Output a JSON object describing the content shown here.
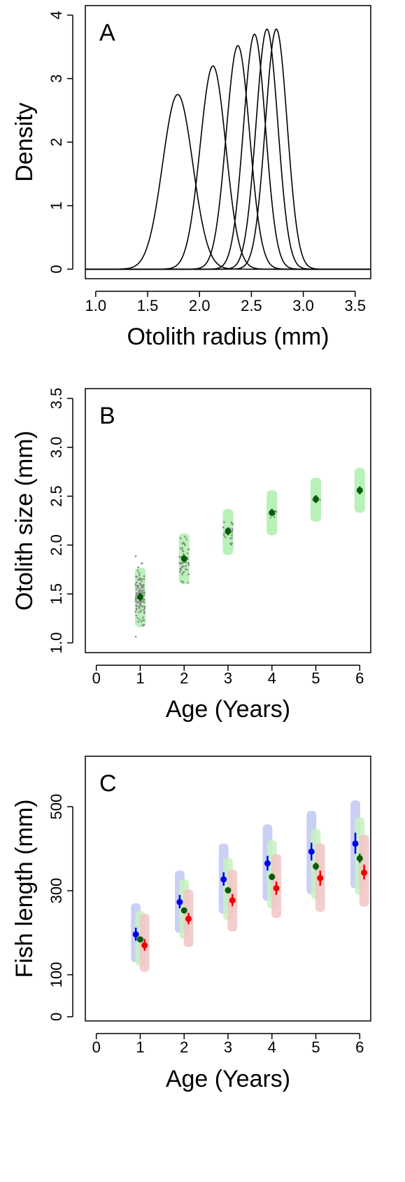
{
  "chart_data": [
    {
      "panel": "A",
      "type": "line",
      "letter": "A",
      "xlabel": "Otolith radius (mm)",
      "ylabel": "Density",
      "xlim": [
        0.9,
        3.65
      ],
      "ylim": [
        -0.15,
        4.15
      ],
      "xticks": [
        1.0,
        1.5,
        2.0,
        2.5,
        3.0,
        3.5
      ],
      "xtick_labels": [
        "1.0",
        "1.5",
        "2.0",
        "2.5",
        "3.0",
        "3.5"
      ],
      "yticks": [
        0,
        1,
        2,
        3,
        4
      ],
      "ytick_labels": [
        "0",
        "1",
        "2",
        "3",
        "4"
      ],
      "grid": false,
      "curve_color": "#000000",
      "series": [
        {
          "mean": 1.79,
          "sd": 0.145,
          "peak": 2.75
        },
        {
          "mean": 2.13,
          "sd": 0.124,
          "peak": 3.2
        },
        {
          "mean": 2.37,
          "sd": 0.113,
          "peak": 3.52
        },
        {
          "mean": 2.53,
          "sd": 0.106,
          "peak": 3.7
        },
        {
          "mean": 2.65,
          "sd": 0.105,
          "peak": 3.78
        },
        {
          "mean": 2.74,
          "sd": 0.105,
          "peak": 3.78
        }
      ]
    },
    {
      "panel": "B",
      "type": "scatter",
      "letter": "B",
      "xlabel": "Age (Years)",
      "ylabel": "Otolith size (mm)",
      "xlim": [
        -0.25,
        6.25
      ],
      "ylim": [
        0.9,
        3.6
      ],
      "xticks": [
        0,
        1,
        2,
        3,
        4,
        5,
        6
      ],
      "xtick_labels": [
        "0",
        "1",
        "2",
        "3",
        "4",
        "5",
        "6"
      ],
      "yticks": [
        1.0,
        1.5,
        2.0,
        2.5,
        3.0,
        3.5
      ],
      "ytick_labels": [
        "1.0",
        "1.5",
        "2.0",
        "2.5",
        "3.0",
        "3.5"
      ],
      "grid": false,
      "colors": {
        "mean": "#0a5c0a",
        "band": "#b8f2b8",
        "raw": "#8a8a8a"
      },
      "series": [
        {
          "name": "",
          "x": [
            1,
            2,
            3,
            4,
            5,
            6
          ],
          "y": [
            1.47,
            1.86,
            2.14,
            2.33,
            2.47,
            2.56
          ],
          "ci_low": [
            1.43,
            1.82,
            2.1,
            2.3,
            2.43,
            2.52
          ],
          "ci_high": [
            1.51,
            1.9,
            2.18,
            2.37,
            2.51,
            2.6
          ],
          "band_low": [
            1.16,
            1.6,
            1.9,
            2.1,
            2.24,
            2.33
          ],
          "band_high": [
            1.77,
            2.12,
            2.37,
            2.56,
            2.69,
            2.79
          ]
        }
      ],
      "raw_points": {
        "ages": [
          1,
          2,
          3,
          4,
          5
        ],
        "counts": [
          120,
          55,
          22,
          6,
          3
        ],
        "mean": [
          1.46,
          1.86,
          2.12,
          2.32,
          2.47
        ],
        "sd": [
          0.15,
          0.12,
          0.08,
          0.05,
          0.02
        ]
      }
    },
    {
      "panel": "C",
      "type": "scatter",
      "letter": "C",
      "xlabel": "Age (Years)",
      "ylabel": "Fish length (mm)",
      "xlim": [
        -0.25,
        6.25
      ],
      "ylim": [
        -10,
        620
      ],
      "xticks": [
        0,
        1,
        2,
        3,
        4,
        5,
        6
      ],
      "xtick_labels": [
        "0",
        "1",
        "2",
        "3",
        "4",
        "5",
        "6"
      ],
      "yticks": [
        0,
        100,
        300,
        500
      ],
      "ytick_labels": [
        "0",
        "100",
        "300",
        "500"
      ],
      "grid": false,
      "series": [
        {
          "name": "",
          "color": "#0000ee",
          "band_color": "#c0c8f2",
          "x_offset": -0.1,
          "x": [
            1,
            2,
            3,
            4,
            5,
            6
          ],
          "y": [
            196,
            273,
            327,
            365,
            393,
            412
          ],
          "ci_low": [
            181,
            258,
            312,
            348,
            372,
            388
          ],
          "ci_high": [
            212,
            290,
            344,
            383,
            414,
            438
          ],
          "band_low": [
            130,
            200,
            245,
            276,
            292,
            306
          ],
          "band_high": [
            270,
            348,
            412,
            458,
            490,
            515
          ]
        },
        {
          "name": "",
          "color": "#0a5c0a",
          "band_color": "#c8f2c0",
          "x_offset": 0,
          "x": [
            1,
            2,
            3,
            4,
            5,
            6
          ],
          "y": [
            184,
            253,
            301,
            333,
            358,
            377
          ],
          "ci_low": [
            178,
            247,
            294,
            325,
            349,
            366
          ],
          "ci_high": [
            190,
            259,
            308,
            341,
            367,
            388
          ],
          "band_low": [
            122,
            186,
            230,
            258,
            280,
            290
          ],
          "band_high": [
            252,
            327,
            378,
            420,
            447,
            475
          ]
        },
        {
          "name": "",
          "color": "#ee0000",
          "band_color": "#f2c4c4",
          "x_offset": 0.1,
          "x": [
            1,
            2,
            3,
            4,
            5,
            6
          ],
          "y": [
            170,
            233,
            277,
            306,
            330,
            343
          ],
          "ci_low": [
            157,
            220,
            263,
            290,
            312,
            327
          ],
          "ci_high": [
            185,
            247,
            292,
            322,
            348,
            362
          ],
          "band_low": [
            107,
            166,
            203,
            235,
            250,
            262
          ],
          "band_high": [
            245,
            303,
            350,
            387,
            413,
            433
          ]
        }
      ]
    }
  ]
}
